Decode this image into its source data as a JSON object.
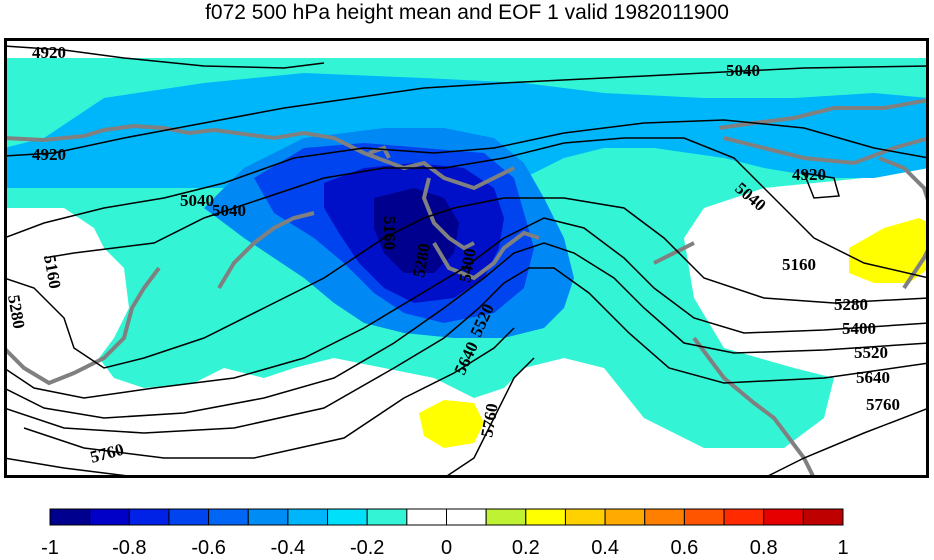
{
  "title": "f072 500 hPa height mean and EOF 1 valid 1982011900",
  "contour_labels": [
    "4920",
    "5040",
    "5160",
    "5280",
    "5400",
    "5520",
    "5640",
    "5760"
  ],
  "colorbar": {
    "ticks": [
      "-1",
      "-0.8",
      "-0.6",
      "-0.4",
      "-0.2",
      "0",
      "0.2",
      "0.4",
      "0.6",
      "0.8",
      "1"
    ],
    "colors": [
      "#00008f",
      "#0000c8",
      "#0022e6",
      "#0044f0",
      "#0066f5",
      "#008cf5",
      "#00b6fa",
      "#00e0fa",
      "#33f5d6",
      "#ffffff",
      "#ffffff",
      "#bff233",
      "#ffff00",
      "#ffd100",
      "#ffaa00",
      "#ff8000",
      "#ff5500",
      "#ff2a00",
      "#e60000",
      "#bf0000"
    ]
  }
}
